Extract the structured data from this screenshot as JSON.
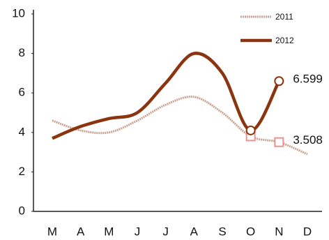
{
  "chart_data": {
    "type": "line",
    "categories": [
      "M",
      "A",
      "M",
      "J",
      "J",
      "A",
      "S",
      "O",
      "N",
      "D"
    ],
    "series": [
      {
        "name": "2011",
        "color": "#c9a291",
        "values": [
          4.6,
          4.1,
          4.0,
          4.6,
          5.4,
          5.8,
          5.0,
          3.8,
          3.508,
          2.9
        ]
      },
      {
        "name": "2012",
        "color": "#8b3510",
        "values": [
          3.7,
          4.3,
          4.7,
          5.0,
          6.5,
          8.0,
          7.0,
          4.1,
          6.599,
          null
        ]
      }
    ],
    "ylim": [
      0,
      10
    ],
    "yticks": [
      0,
      2,
      4,
      6,
      8,
      10
    ],
    "grid": false,
    "legend": "top-right"
  }
}
